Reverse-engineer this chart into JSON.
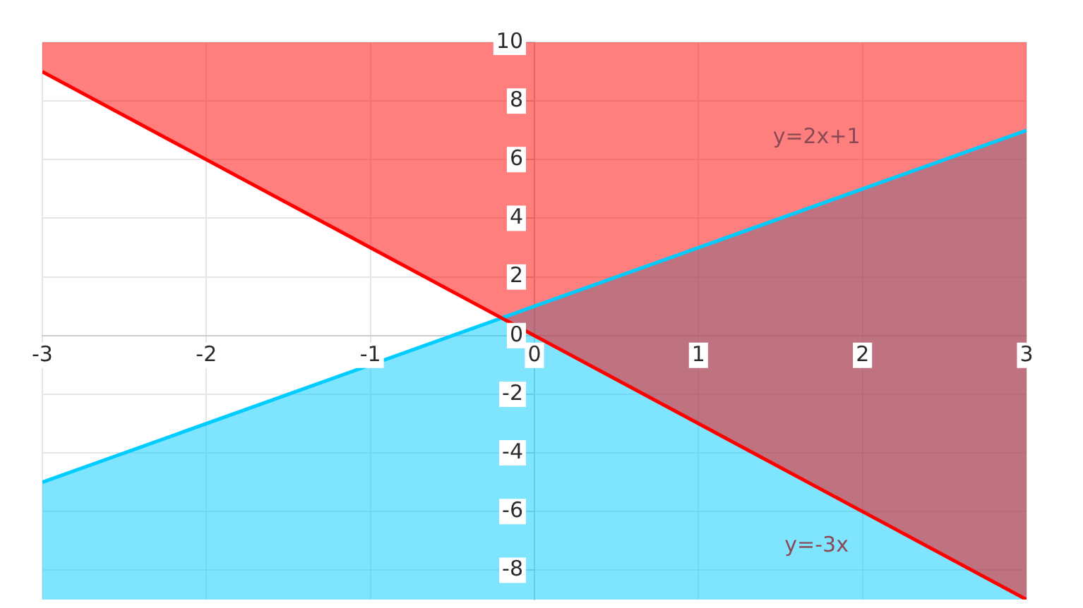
{
  "chart_data": {
    "type": "line",
    "series": [
      {
        "name": "y=2x+1",
        "color": "#00ccff",
        "x": [
          -3,
          -0.2,
          3
        ],
        "values": [
          -5,
          0.6,
          7
        ],
        "lower": [
          -9,
          -9,
          -9
        ],
        "upper": [
          -5,
          0.6,
          7
        ]
      },
      {
        "name": "y=-3x",
        "color": "#ff0000",
        "x": [
          -3,
          -0.2,
          3
        ],
        "values": [
          9,
          0.6,
          -9
        ],
        "lower": [
          9,
          0.6,
          -9
        ],
        "upper": [
          10,
          10,
          10
        ]
      }
    ],
    "xlim": [
      -3,
      3
    ],
    "xticks": [
      -3,
      -2,
      -1,
      0,
      1,
      2,
      3
    ],
    "ylim": [
      -9,
      10
    ],
    "yticks": [
      -8,
      -6,
      -4,
      -2,
      0,
      2,
      4,
      6,
      8,
      10
    ],
    "grid": true,
    "marker": "none",
    "line_style": "solid"
  }
}
